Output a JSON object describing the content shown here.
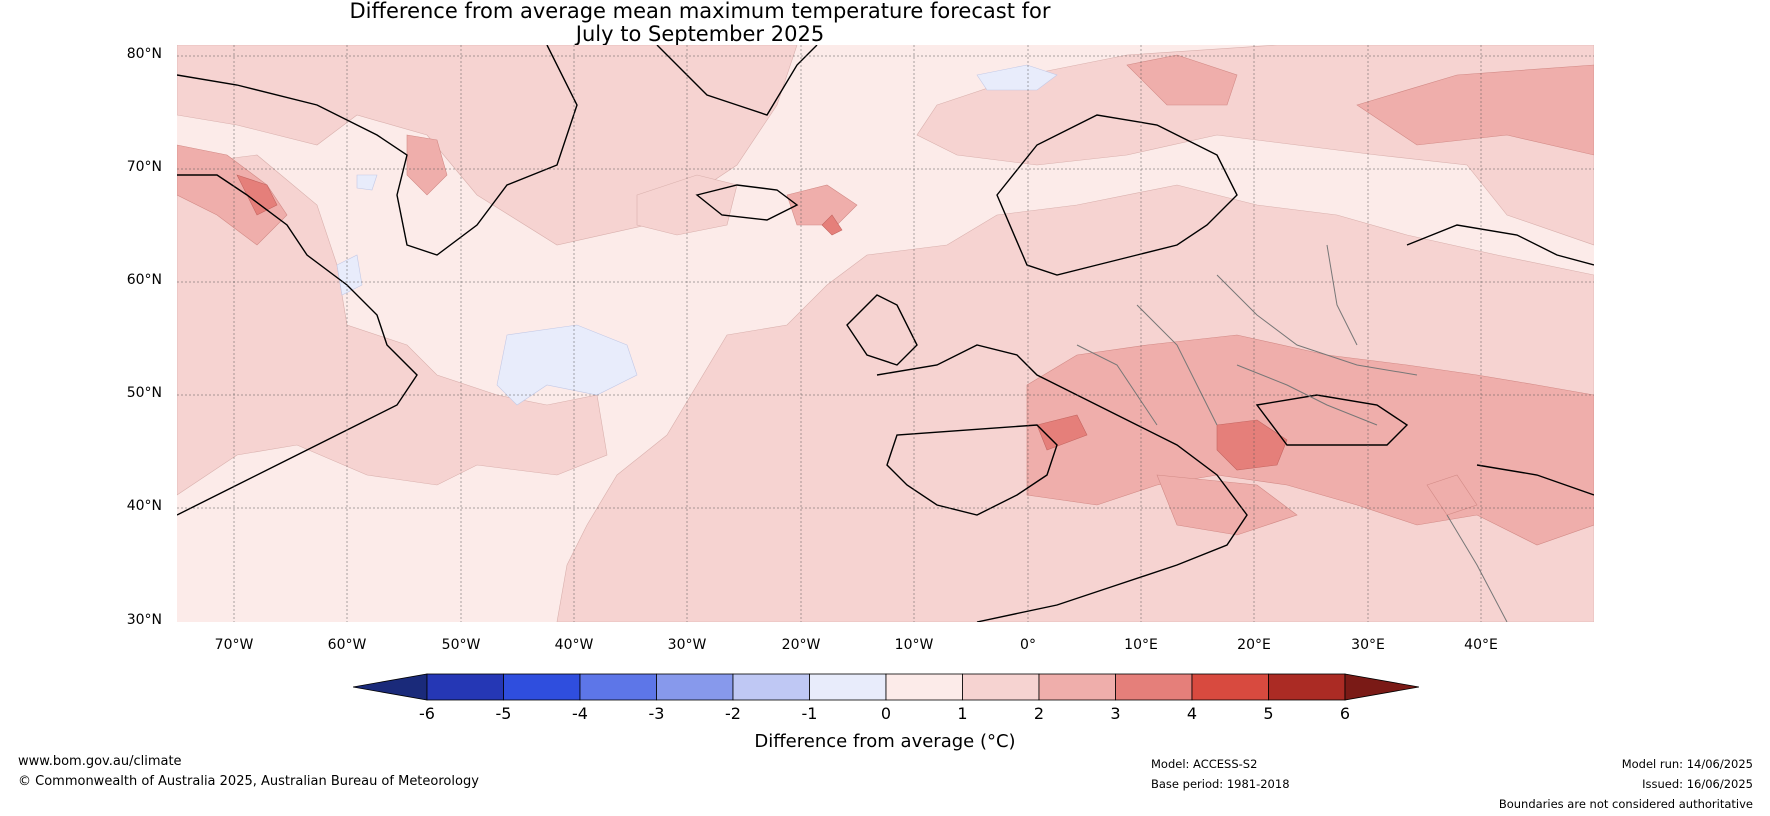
{
  "title_line1": "Difference from average mean maximum temperature forecast for",
  "title_line2": "July to September 2025",
  "lat_labels": [
    "80°N",
    "70°N",
    "60°N",
    "50°N",
    "40°N",
    "30°N"
  ],
  "lon_labels": [
    "70°W",
    "60°W",
    "50°W",
    "40°W",
    "30°W",
    "20°W",
    "10°W",
    "0°",
    "10°E",
    "20°E",
    "30°E",
    "40°E"
  ],
  "colorbar": {
    "ticks": [
      "-6",
      "-5",
      "-4",
      "-3",
      "-2",
      "-1",
      "0",
      "1",
      "2",
      "3",
      "4",
      "5",
      "6"
    ],
    "colors": [
      "#1a2a7a",
      "#2537b5",
      "#2f4ede",
      "#5d76e8",
      "#8799ec",
      "#bfc8f4",
      "#e8ecfb",
      "#fcebe9",
      "#f6d3d1",
      "#efaeab",
      "#e57f7a",
      "#d84a3f",
      "#ab2b24",
      "#7a1a16"
    ],
    "label": "Difference from average (°C)"
  },
  "footer": {
    "site": "www.bom.gov.au/climate",
    "copyright": "© Commonwealth of Australia 2025, Australian Bureau of Meteorology",
    "model": "Model: ACCESS-S2",
    "base_period": "Base period: 1981-2018",
    "model_run": "Model run: 14/06/2025",
    "issued": "Issued: 16/06/2025",
    "disclaimer": "Boundaries are not considered authoritative"
  }
}
